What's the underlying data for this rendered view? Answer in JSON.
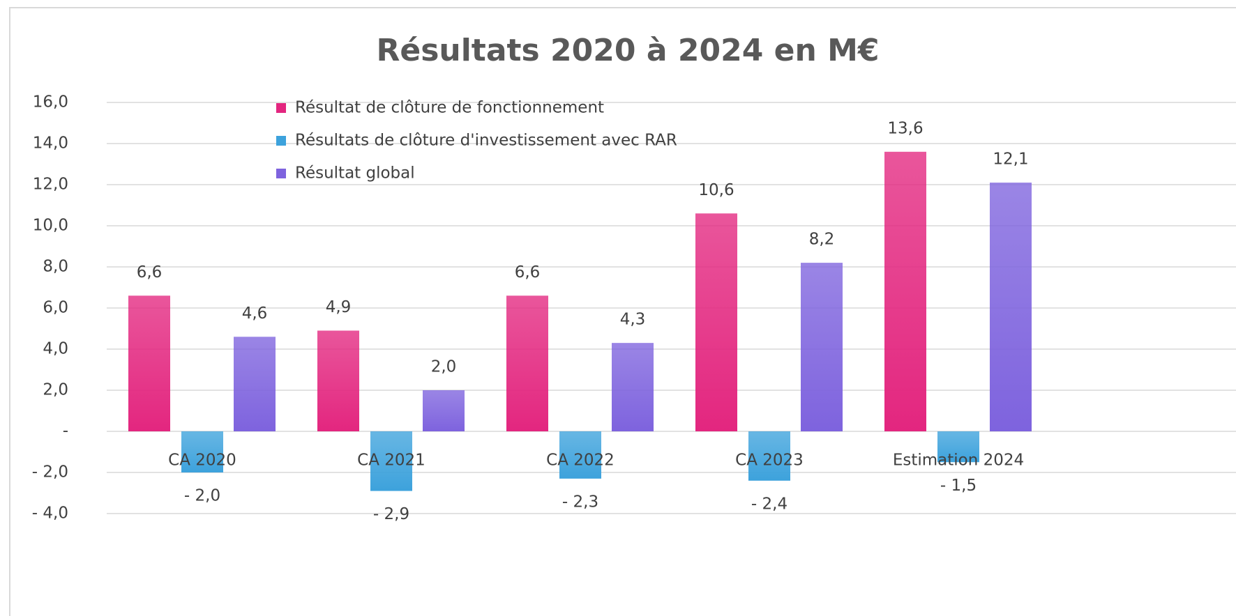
{
  "chart_data": {
    "type": "bar",
    "title": "Résultats 2020 à 2024 en M€",
    "categories": [
      "CA 2020",
      "CA 2021",
      "CA 2022",
      "CA 2023",
      "Estimation 2024"
    ],
    "series": [
      {
        "name": "Résultat de clôture de fonctionnement",
        "color": "#e3267f",
        "values": [
          6.6,
          4.9,
          6.6,
          10.6,
          13.6
        ],
        "value_labels": [
          "6,6",
          "4,9",
          "6,6",
          "10,6",
          "13,6"
        ]
      },
      {
        "name": "Résultats de clôture d'investissement avec RAR",
        "color": "#3da2dc",
        "values": [
          -2.0,
          -2.9,
          -2.3,
          -2.4,
          -1.5
        ],
        "value_labels": [
          "- 2,0",
          "- 2,9",
          "- 2,3",
          "- 2,4",
          "- 1,5"
        ]
      },
      {
        "name": "Résultat global",
        "color": "#7e63de",
        "values": [
          4.6,
          2.0,
          4.3,
          8.2,
          12.1
        ],
        "value_labels": [
          "4,6",
          "2,0",
          "4,3",
          "8,2",
          "12,1"
        ]
      }
    ],
    "ylim": [
      -4,
      16
    ],
    "yticks": [
      {
        "value": -4,
        "label": "- 4,0"
      },
      {
        "value": -2,
        "label": "- 2,0"
      },
      {
        "value": 0,
        "label": "-"
      },
      {
        "value": 2,
        "label": "2,0"
      },
      {
        "value": 4,
        "label": "4,0"
      },
      {
        "value": 6,
        "label": "6,0"
      },
      {
        "value": 8,
        "label": "8,0"
      },
      {
        "value": 10,
        "label": "10,0"
      },
      {
        "value": 12,
        "label": "12,0"
      },
      {
        "value": 14,
        "label": "14,0"
      },
      {
        "value": 16,
        "label": "16,0"
      }
    ],
    "grid": true,
    "legend": "top-left"
  }
}
